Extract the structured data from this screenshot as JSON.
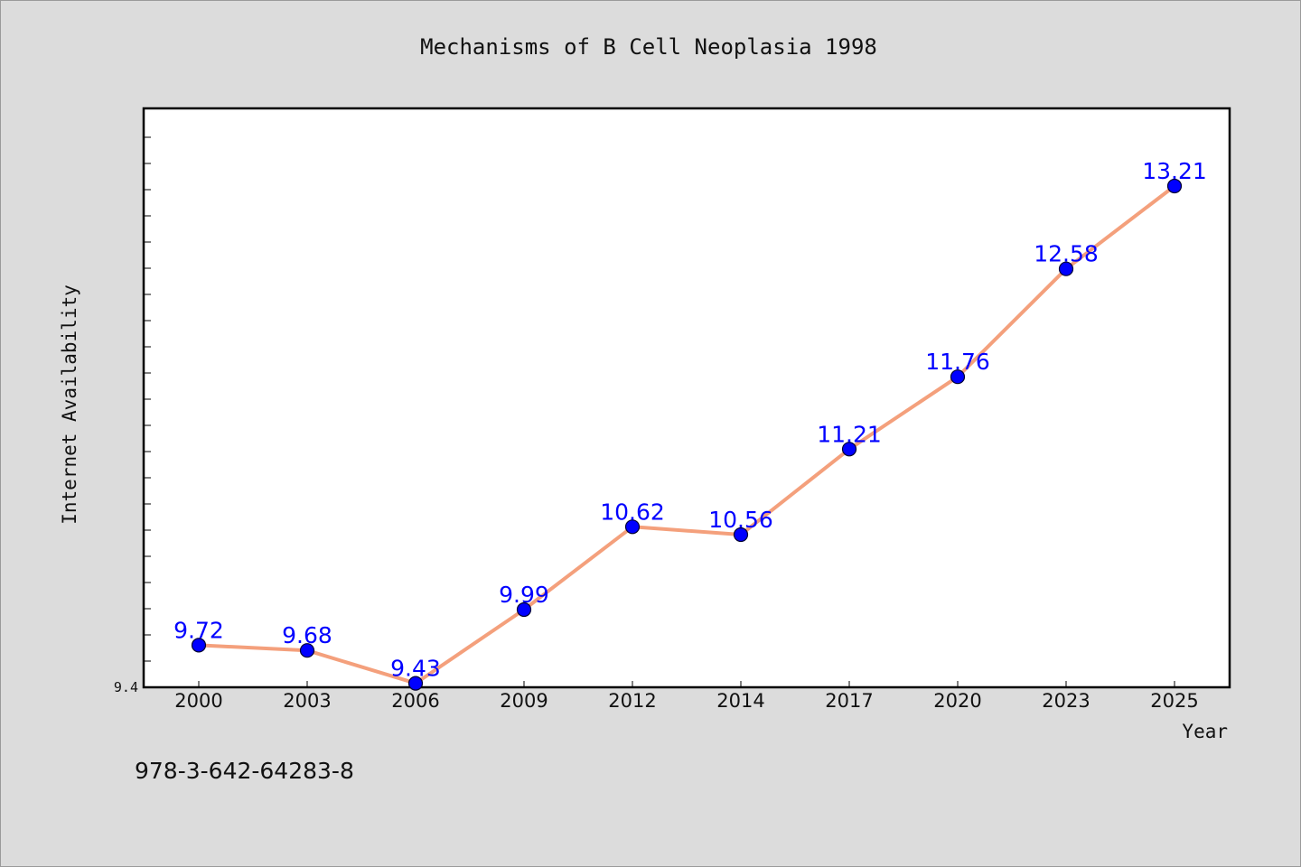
{
  "chart_data": {
    "type": "line",
    "title": "Mechanisms of B Cell Neoplasia 1998",
    "xlabel": "Year",
    "ylabel": "Internet Availability",
    "categories": [
      "2000",
      "2003",
      "2006",
      "2009",
      "2012",
      "2014",
      "2017",
      "2020",
      "2023",
      "2025"
    ],
    "series": [
      {
        "values": [
          9.72,
          9.68,
          9.43,
          9.99,
          10.62,
          10.56,
          11.21,
          11.76,
          12.58,
          13.21
        ]
      }
    ],
    "y_tick_labels": [
      "9.4"
    ],
    "ylim": [
      9.4,
      13.8
    ],
    "grid": false,
    "line_color": "#f4a07c",
    "marker_color": "#0000ff",
    "label_color": "#0000ff"
  },
  "footer": {
    "isbn": "978-3-642-64283-8"
  }
}
